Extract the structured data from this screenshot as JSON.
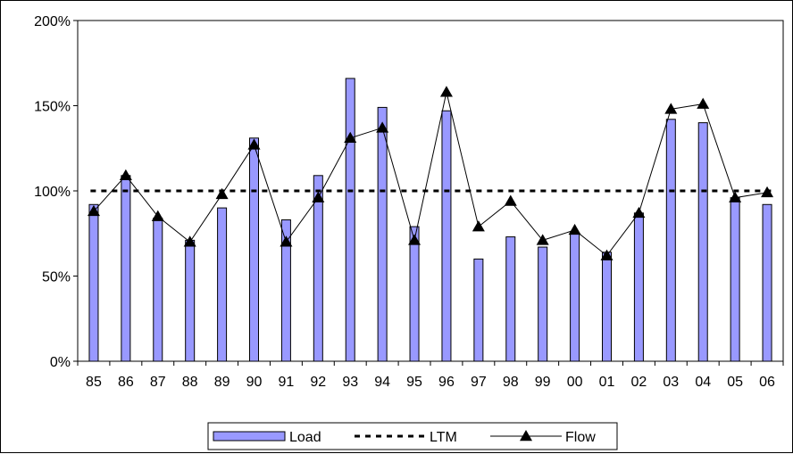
{
  "chart_data": {
    "type": "bar",
    "title": "",
    "xlabel": "",
    "ylabel": "",
    "categories": [
      "85",
      "86",
      "87",
      "88",
      "89",
      "90",
      "91",
      "92",
      "93",
      "94",
      "95",
      "96",
      "97",
      "98",
      "99",
      "00",
      "01",
      "02",
      "03",
      "04",
      "05",
      "06"
    ],
    "ylim": [
      0,
      200
    ],
    "y_ticks": [
      0,
      50,
      100,
      150,
      200
    ],
    "y_tick_labels": [
      "0%",
      "50%",
      "100%",
      "150%",
      "200%"
    ],
    "grid": false,
    "legend_position": "bottom",
    "series": [
      {
        "name": "Load",
        "type": "bar",
        "color": "#9999ff",
        "values": [
          92,
          109,
          84,
          71,
          90,
          131,
          83,
          109,
          166,
          149,
          79,
          147,
          60,
          73,
          67,
          75,
          64,
          87,
          142,
          140,
          96,
          92
        ]
      },
      {
        "name": "LTM",
        "type": "line",
        "style": "dashed",
        "color": "#000000",
        "values": [
          100,
          100,
          100,
          100,
          100,
          100,
          100,
          100,
          100,
          100,
          100,
          100,
          100,
          100,
          100,
          100,
          100,
          100,
          100,
          100,
          100,
          100
        ]
      },
      {
        "name": "Flow",
        "type": "line",
        "marker": "triangle",
        "color": "#000000",
        "values": [
          88,
          109,
          85,
          70,
          98,
          127,
          70,
          96,
          131,
          137,
          71,
          158,
          79,
          94,
          71,
          77,
          62,
          87,
          148,
          151,
          96,
          99
        ]
      }
    ]
  }
}
